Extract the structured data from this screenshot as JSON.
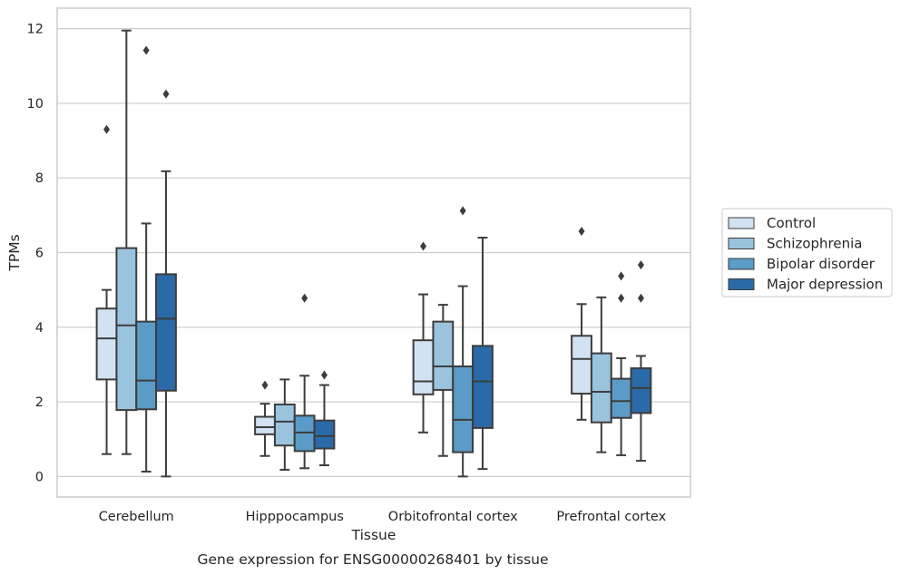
{
  "chart_data": {
    "type": "boxplot",
    "title": "",
    "xlabel": "Tissue",
    "ylabel": "TPMs",
    "caption": "Gene expression for ENSG00000268401 by tissue",
    "ylim": [
      -0.55,
      12.55
    ],
    "yticks": [
      0,
      2,
      4,
      6,
      8,
      10,
      12
    ],
    "grid": "horizontal",
    "legend_position": "right",
    "categories": [
      "Cerebellum",
      "Hipppocampus",
      "Orbitofrontal cortex",
      "Prefrontal cortex"
    ],
    "series": [
      {
        "name": "Control",
        "color": "#d2e2f2",
        "boxes": [
          {
            "whislo": 0.6,
            "q1": 2.6,
            "med": 3.7,
            "q3": 4.5,
            "whishi": 5.0,
            "fliers": [
              9.3
            ]
          },
          {
            "whislo": 0.55,
            "q1": 1.13,
            "med": 1.32,
            "q3": 1.6,
            "whishi": 1.95,
            "fliers": [
              2.45
            ]
          },
          {
            "whislo": 1.18,
            "q1": 2.2,
            "med": 2.55,
            "q3": 3.65,
            "whishi": 4.88,
            "fliers": [
              6.17
            ]
          },
          {
            "whislo": 1.52,
            "q1": 2.22,
            "med": 3.15,
            "q3": 3.77,
            "whishi": 4.62,
            "fliers": [
              6.57
            ]
          }
        ]
      },
      {
        "name": "Schizophrenia",
        "color": "#9ac3de",
        "boxes": [
          {
            "whislo": 0.6,
            "q1": 1.78,
            "med": 4.05,
            "q3": 6.12,
            "whishi": 11.95,
            "fliers": []
          },
          {
            "whislo": 0.18,
            "q1": 0.83,
            "med": 1.47,
            "q3": 1.93,
            "whishi": 2.6,
            "fliers": []
          },
          {
            "whislo": 0.55,
            "q1": 2.32,
            "med": 2.95,
            "q3": 4.15,
            "whishi": 4.6,
            "fliers": []
          },
          {
            "whislo": 0.65,
            "q1": 1.45,
            "med": 2.27,
            "q3": 3.3,
            "whishi": 4.8,
            "fliers": []
          }
        ]
      },
      {
        "name": "Bipolar disorder",
        "color": "#5a9bc8",
        "boxes": [
          {
            "whislo": 0.13,
            "q1": 1.8,
            "med": 2.57,
            "q3": 4.15,
            "whishi": 6.78,
            "fliers": [
              11.42
            ]
          },
          {
            "whislo": 0.22,
            "q1": 0.68,
            "med": 1.18,
            "q3": 1.63,
            "whishi": 2.7,
            "fliers": [
              4.78
            ]
          },
          {
            "whislo": 0.0,
            "q1": 0.65,
            "med": 1.52,
            "q3": 2.95,
            "whishi": 5.1,
            "fliers": [
              7.12
            ]
          },
          {
            "whislo": 0.57,
            "q1": 1.57,
            "med": 2.02,
            "q3": 2.62,
            "whishi": 3.17,
            "fliers": [
              4.78,
              5.37
            ]
          }
        ]
      },
      {
        "name": "Major depression",
        "color": "#2a6aa8",
        "boxes": [
          {
            "whislo": 0.0,
            "q1": 2.3,
            "med": 4.23,
            "q3": 5.42,
            "whishi": 8.18,
            "fliers": [
              10.25
            ]
          },
          {
            "whislo": 0.3,
            "q1": 0.75,
            "med": 1.08,
            "q3": 1.5,
            "whishi": 2.45,
            "fliers": [
              2.72
            ]
          },
          {
            "whislo": 0.2,
            "q1": 1.3,
            "med": 2.55,
            "q3": 3.5,
            "whishi": 6.4,
            "fliers": []
          },
          {
            "whislo": 0.42,
            "q1": 1.7,
            "med": 2.37,
            "q3": 2.9,
            "whishi": 3.23,
            "fliers": [
              4.78,
              5.67
            ]
          }
        ]
      }
    ]
  }
}
